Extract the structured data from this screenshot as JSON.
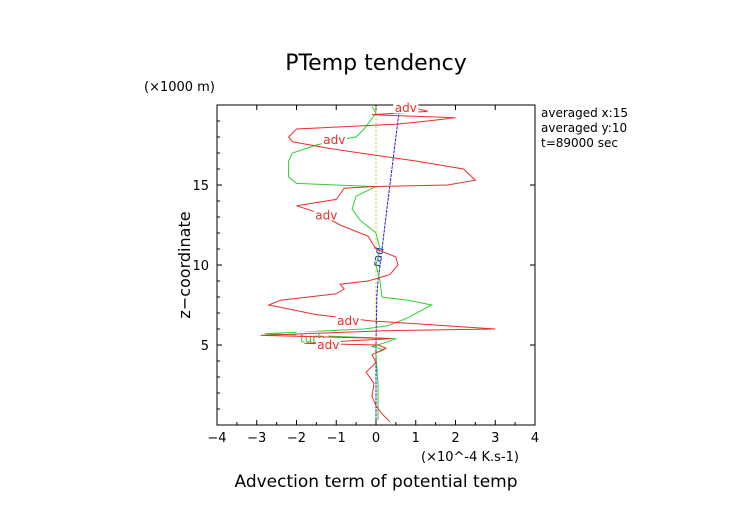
{
  "chart_data": {
    "type": "line",
    "title": "PTemp tendency",
    "xlabel": "Advection term of potential temp",
    "x_unit": "(×10⁻⁴ K.s⁻1)",
    "x_unit_text": "(×10^-4 K.s-1)",
    "ylabel": "z−coordinate",
    "y_unit": "(×1000 m)",
    "xlim": [
      -4,
      4
    ],
    "ylim": [
      0,
      20
    ],
    "xticks": [
      "−4",
      "−3",
      "−2",
      "−1",
      "0",
      "1",
      "2",
      "3",
      "4"
    ],
    "yticks": [
      "5",
      "10",
      "15"
    ],
    "info": [
      "averaged  x:15",
      "averaged  y:10",
      "t=89000 sec"
    ],
    "colors": {
      "adv": "#e8302a",
      "turb": "#2ed12e",
      "rad": "#2020d0",
      "other": "#d8c020"
    },
    "series": [
      {
        "name": "adv",
        "color": "#e8302a",
        "labels": [
          {
            "text": "adv",
            "x": 0.75,
            "y": 19.8
          },
          {
            "text": "adv",
            "x": -1.05,
            "y": 17.8
          },
          {
            "text": "adv",
            "x": -1.25,
            "y": 13.1
          },
          {
            "text": "adv",
            "x": -0.7,
            "y": 6.5
          },
          {
            "text": "adv",
            "x": -1.2,
            "y": 5.0
          }
        ],
        "points": [
          [
            0.35,
            0.2
          ],
          [
            0.15,
            0.7
          ],
          [
            0.0,
            1.2
          ],
          [
            -0.1,
            1.8
          ],
          [
            -0.05,
            2.6
          ],
          [
            -0.25,
            3.3
          ],
          [
            0.0,
            3.9
          ],
          [
            -0.1,
            4.4
          ],
          [
            0.25,
            4.8
          ],
          [
            0.05,
            5.0
          ],
          [
            -1.8,
            5.1
          ],
          [
            0.4,
            5.4
          ],
          [
            -2.9,
            5.6
          ],
          [
            -1.3,
            5.75
          ],
          [
            0.3,
            5.9
          ],
          [
            3.0,
            6.0
          ],
          [
            1.2,
            6.3
          ],
          [
            -0.1,
            6.5
          ],
          [
            -1.5,
            6.9
          ],
          [
            -2.7,
            7.5
          ],
          [
            -2.4,
            7.8
          ],
          [
            -1.0,
            8.2
          ],
          [
            -0.8,
            8.5
          ],
          [
            -0.9,
            8.8
          ],
          [
            -0.2,
            9.0
          ],
          [
            0.35,
            9.4
          ],
          [
            0.55,
            10.0
          ],
          [
            0.5,
            10.5
          ],
          [
            0.0,
            11.0
          ],
          [
            -0.2,
            11.8
          ],
          [
            -0.9,
            12.5
          ],
          [
            -1.5,
            13.3
          ],
          [
            -2.0,
            13.7
          ],
          [
            -1.0,
            14.1
          ],
          [
            -0.8,
            14.8
          ],
          [
            -0.1,
            14.9
          ],
          [
            1.8,
            15.0
          ],
          [
            2.5,
            15.3
          ],
          [
            2.2,
            16.0
          ],
          [
            1.0,
            16.5
          ],
          [
            -0.4,
            17.0
          ],
          [
            -1.2,
            17.3
          ],
          [
            -2.1,
            17.7
          ],
          [
            -2.2,
            18.0
          ],
          [
            -2.0,
            18.5
          ],
          [
            0.5,
            18.8
          ],
          [
            1.3,
            19.0
          ],
          [
            2.0,
            19.2
          ],
          [
            -0.1,
            19.4
          ],
          [
            1.3,
            19.6
          ],
          [
            1.0,
            19.8
          ]
        ]
      },
      {
        "name": "turb",
        "color": "#2ed12e",
        "labels": [
          {
            "text": "turb",
            "x": -1.6,
            "y": 5.4
          }
        ],
        "points": [
          [
            0.05,
            0.3
          ],
          [
            0.05,
            2.5
          ],
          [
            0.0,
            4.5
          ],
          [
            0.2,
            4.7
          ],
          [
            -0.1,
            4.9
          ],
          [
            0.3,
            5.2
          ],
          [
            0.5,
            5.4
          ],
          [
            -2.8,
            5.7
          ],
          [
            -0.3,
            6.0
          ],
          [
            0.3,
            6.2
          ],
          [
            0.8,
            6.7
          ],
          [
            1.4,
            7.5
          ],
          [
            0.8,
            7.8
          ],
          [
            0.15,
            8.0
          ],
          [
            0.1,
            9.0
          ],
          [
            0.0,
            10.0
          ],
          [
            0.1,
            11.0
          ],
          [
            0.0,
            12.0
          ],
          [
            -0.4,
            12.8
          ],
          [
            -0.6,
            13.5
          ],
          [
            -0.5,
            14.3
          ],
          [
            0.0,
            14.9
          ],
          [
            -2.0,
            15.1
          ],
          [
            -2.2,
            15.5
          ],
          [
            -2.2,
            16.5
          ],
          [
            -2.1,
            17.0
          ],
          [
            -1.5,
            17.5
          ],
          [
            -1.0,
            17.8
          ],
          [
            -0.5,
            18.0
          ],
          [
            -0.3,
            18.5
          ],
          [
            0.0,
            19.5
          ],
          [
            -0.1,
            19.9
          ]
        ]
      },
      {
        "name": "rad",
        "color": "#2020d0",
        "labels": [
          {
            "text": "rad",
            "x": 0.05,
            "y": 10.5
          }
        ],
        "points": [
          [
            0.0,
            0.3
          ],
          [
            0.0,
            3.0
          ],
          [
            0.0,
            5.0
          ],
          [
            0.02,
            8.0
          ],
          [
            0.05,
            9.0
          ],
          [
            0.1,
            10.0
          ],
          [
            0.15,
            11.0
          ],
          [
            0.2,
            12.0
          ],
          [
            0.25,
            13.0
          ],
          [
            0.3,
            14.0
          ],
          [
            0.35,
            15.0
          ],
          [
            0.4,
            16.0
          ],
          [
            0.45,
            17.0
          ],
          [
            0.5,
            18.0
          ],
          [
            0.55,
            19.0
          ],
          [
            0.6,
            19.9
          ]
        ]
      },
      {
        "name": "",
        "color": "#d8c020",
        "labels": [],
        "points": [
          [
            0.0,
            0.3
          ],
          [
            0.0,
            19.9
          ]
        ]
      }
    ]
  }
}
